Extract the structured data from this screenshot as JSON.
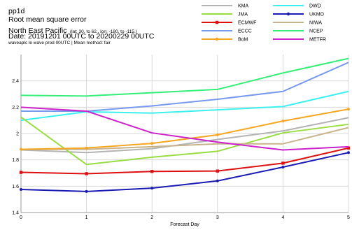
{
  "header": {
    "line1": "pp1d",
    "line2": "Root mean square error",
    "line3_main": "North East Pacific",
    "line3_detail": "(lat: 30. to 62., lon: -180. to -115.)",
    "line4": "Date: 20191201 00UTC to 20200229 00UTC",
    "line5": "waveaplc le wave prod 00UTC | Mean method: fair"
  },
  "chart_data": {
    "type": "line",
    "title": "pp1d",
    "xlabel": "Forecast Day",
    "ylabel": "",
    "x": [
      0,
      1,
      2,
      3,
      4,
      5
    ],
    "xticks": [
      "0",
      "1",
      "2",
      "3",
      "4",
      "5"
    ],
    "xlim": [
      0,
      5
    ],
    "ylim": [
      1.4,
      2.6
    ],
    "yticks": [
      "1.4",
      "1.6",
      "1.8",
      "2",
      "2.2",
      "2.4"
    ],
    "ytick_values": [
      1.4,
      1.6,
      1.8,
      2.0,
      2.2,
      2.4
    ],
    "grid": true,
    "legend_position": "top-right",
    "series": [
      {
        "name": "KMA",
        "color": "#b4b4b4",
        "marker": "none",
        "values": [
          1.875,
          1.855,
          1.885,
          1.955,
          2.02,
          2.12
        ]
      },
      {
        "name": "DWD",
        "color": "#3cf0f0",
        "marker": "none",
        "values": [
          2.1,
          2.165,
          2.155,
          2.18,
          2.205,
          2.32
        ]
      },
      {
        "name": "JMA",
        "color": "#99dd44",
        "marker": "none",
        "values": [
          2.125,
          1.765,
          1.82,
          1.865,
          2.005,
          2.07
        ]
      },
      {
        "name": "UKMO",
        "color": "#1a1ab4",
        "marker": "dot",
        "values": [
          1.575,
          1.56,
          1.585,
          1.64,
          1.745,
          1.855
        ]
      },
      {
        "name": "ECMWF",
        "color": "#dd1111",
        "marker": "square",
        "values": [
          1.705,
          1.695,
          1.712,
          1.715,
          1.775,
          1.89
        ]
      },
      {
        "name": "NIWA",
        "color": "#c8b48c",
        "marker": "none",
        "values": [
          1.88,
          1.88,
          1.9,
          1.922,
          1.922,
          2.045
        ]
      },
      {
        "name": "ECCC",
        "color": "#7799ee",
        "marker": "none",
        "values": [
          2.17,
          2.17,
          2.21,
          2.26,
          2.32,
          2.54
        ]
      },
      {
        "name": "NCEP",
        "color": "#33ee77",
        "marker": "none",
        "values": [
          2.29,
          2.285,
          2.31,
          2.335,
          2.46,
          2.57
        ]
      },
      {
        "name": "BoM",
        "color": "#f5a623",
        "marker": "dot",
        "values": [
          1.88,
          1.89,
          1.925,
          1.99,
          2.095,
          2.185
        ]
      },
      {
        "name": "METFR",
        "color": "#cc22cc",
        "marker": "none",
        "values": [
          2.2,
          2.17,
          2.005,
          1.935,
          1.875,
          1.9
        ]
      }
    ]
  }
}
